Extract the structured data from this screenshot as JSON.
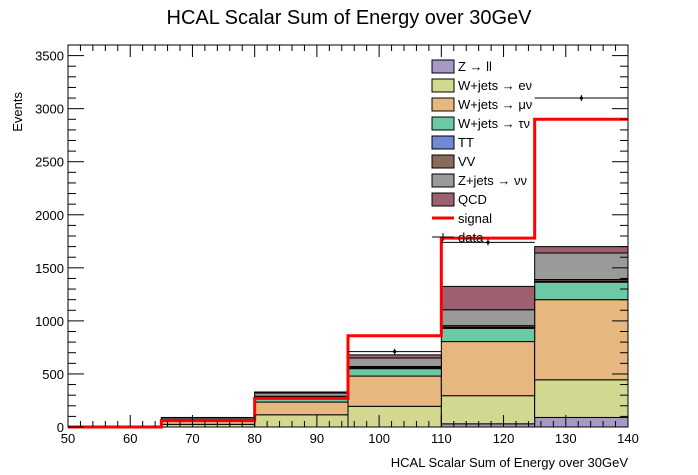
{
  "chart_data": {
    "type": "bar",
    "stacked": true,
    "title": "HCAL Scalar Sum of Energy over 30GeV",
    "xlabel": "HCAL Scalar Sum of Energy over 30GeV",
    "ylabel": "Events",
    "xlim": [
      50,
      140
    ],
    "ylim": [
      0,
      3600
    ],
    "x_ticks": [
      "50",
      "60",
      "70",
      "80",
      "90",
      "100",
      "110",
      "120",
      "130",
      "140"
    ],
    "y_ticks": [
      "0",
      "500",
      "1000",
      "1500",
      "2000",
      "2500",
      "3000",
      "3500"
    ],
    "bin_edges": [
      50,
      65,
      80,
      95,
      110,
      125,
      140
    ],
    "series": [
      {
        "name": "Z → ll",
        "color": "#a898c4",
        "values": [
          0,
          0,
          0,
          0,
          30,
          90
        ]
      },
      {
        "name": "W+jets → eν",
        "color": "#d2d890",
        "values": [
          0,
          25,
          115,
          195,
          265,
          355
        ]
      },
      {
        "name": "W+jets → μν",
        "color": "#e6b880",
        "values": [
          0,
          30,
          120,
          285,
          510,
          755
        ]
      },
      {
        "name": "W+jets → τν",
        "color": "#6dc9a5",
        "values": [
          0,
          5,
          45,
          70,
          125,
          165
        ]
      },
      {
        "name": "TT",
        "color": "#6f89d6",
        "values": [
          0,
          5,
          5,
          10,
          10,
          10
        ]
      },
      {
        "name": "VV",
        "color": "#8a6a5a",
        "values": [
          0,
          5,
          5,
          10,
          15,
          15
        ]
      },
      {
        "name": "Z+jets → νν",
        "color": "#9a9a9a",
        "values": [
          0,
          15,
          30,
          80,
          150,
          250
        ]
      },
      {
        "name": "QCD",
        "color": "#9c606e",
        "values": [
          0,
          5,
          10,
          30,
          220,
          60
        ]
      }
    ],
    "signal": {
      "name": "signal",
      "color": "#ff0000",
      "values": [
        0,
        60,
        270,
        860,
        1780,
        2900
      ]
    },
    "data": {
      "name": "data",
      "x": [
        102.5,
        117.5,
        132.5
      ],
      "y": [
        710,
        1740,
        3100
      ]
    },
    "legend_position": "top-right",
    "grid": false
  }
}
